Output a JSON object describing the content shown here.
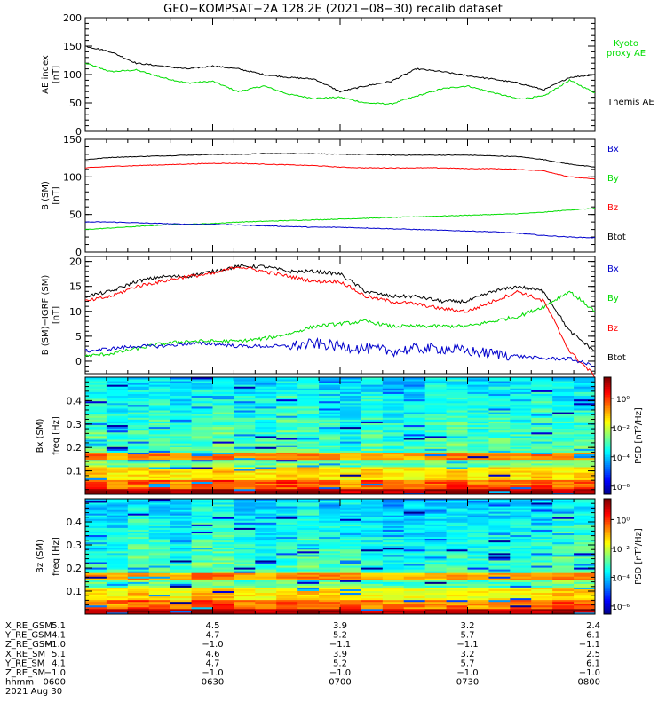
{
  "title": "GEO−KOMPSAT−2A 128.2E (2021−08−30) recalib dataset",
  "colors": {
    "black": "#000000",
    "green": "#00dd00",
    "red": "#ff0000",
    "blue": "#0000cc"
  },
  "chart_data": [
    {
      "type": "line",
      "name": "ae",
      "ylabel": "AE index",
      "yunit": "[nT]",
      "ylim": [
        0,
        200
      ],
      "yticks": [
        0,
        50,
        100,
        150,
        200
      ],
      "x": [
        0,
        3,
        6,
        9,
        12,
        15,
        18,
        21,
        24,
        27,
        30,
        33,
        36,
        39,
        42,
        45,
        48,
        51,
        54,
        57,
        60
      ],
      "xlabel_times": [
        "0600",
        "0630",
        "0700",
        "0730",
        "0800"
      ],
      "series": [
        {
          "name": "Kyoto proxy AE",
          "label_lines": [
            "Kyoto",
            "proxy AE"
          ],
          "color": "#00dd00",
          "values": [
            120,
            105,
            108,
            95,
            85,
            88,
            70,
            80,
            65,
            58,
            60,
            50,
            48,
            62,
            75,
            80,
            68,
            57,
            62,
            90,
            68
          ]
        },
        {
          "name": "Themis AE",
          "label_lines": [
            "Themis AE"
          ],
          "color": "#000000",
          "values": [
            150,
            140,
            120,
            115,
            110,
            115,
            110,
            100,
            95,
            92,
            70,
            80,
            88,
            110,
            105,
            98,
            92,
            85,
            73,
            95,
            100
          ]
        }
      ]
    },
    {
      "type": "line",
      "name": "bsm",
      "ylabel": "B (SM)",
      "yunit": "[nT]",
      "ylim": [
        0,
        150
      ],
      "yticks": [
        0,
        50,
        100,
        150
      ],
      "x": [
        0,
        3,
        6,
        9,
        12,
        15,
        18,
        21,
        24,
        27,
        30,
        33,
        36,
        39,
        42,
        45,
        48,
        51,
        54,
        57,
        60
      ],
      "series": [
        {
          "name": "Btot",
          "color": "#000000",
          "values": [
            123,
            126,
            127,
            128,
            129,
            130,
            130,
            131,
            131,
            131,
            130,
            130,
            129,
            129,
            129,
            129,
            128,
            127,
            123,
            117,
            113
          ]
        },
        {
          "name": "By",
          "color": "#00dd00",
          "values": [
            30,
            32,
            34,
            36,
            37,
            38,
            40,
            41,
            42,
            43,
            44,
            45,
            46,
            47,
            48,
            49,
            50,
            51,
            53,
            56,
            58
          ]
        },
        {
          "name": "Bz",
          "color": "#ff0000",
          "values": [
            112,
            114,
            115,
            116,
            117,
            118,
            118,
            117,
            116,
            115,
            113,
            112,
            112,
            112,
            112,
            111,
            111,
            110,
            108,
            100,
            97
          ]
        },
        {
          "name": "Bx",
          "color": "#0000cc",
          "values": [
            40,
            40,
            39,
            38,
            37,
            37,
            36,
            35,
            34,
            33,
            33,
            32,
            31,
            30,
            29,
            28,
            27,
            25,
            22,
            20,
            19
          ]
        }
      ],
      "legend": [
        "Bx",
        "By",
        "Bz",
        "Btot"
      ]
    },
    {
      "type": "line",
      "name": "dbsm",
      "ylabel": "B (SM)−IGRF (SM)",
      "yunit": "[nT]",
      "ylim": [
        -2.5,
        21
      ],
      "yticks": [
        0,
        5,
        10,
        15,
        20
      ],
      "x": [
        0,
        3,
        6,
        9,
        12,
        15,
        18,
        21,
        24,
        27,
        30,
        33,
        36,
        39,
        42,
        45,
        48,
        51,
        54,
        57,
        60
      ],
      "series": [
        {
          "name": "Btot",
          "color": "#000000",
          "values": [
            13,
            14,
            16,
            17,
            17,
            18,
            19,
            19,
            18,
            18,
            17.5,
            14,
            13,
            13,
            12,
            12,
            14,
            15,
            14,
            6,
            2
          ]
        },
        {
          "name": "By",
          "color": "#00dd00",
          "values": [
            1,
            1.5,
            2.5,
            3.5,
            4,
            4,
            4,
            4.5,
            5.5,
            7,
            7.5,
            8,
            7,
            7,
            7,
            7,
            8,
            9,
            11,
            14,
            10
          ]
        },
        {
          "name": "Bz",
          "color": "#ff0000",
          "values": [
            12,
            13,
            15,
            16,
            17,
            17.5,
            19,
            18,
            17,
            16,
            16,
            13,
            12,
            11.5,
            10.5,
            10,
            12,
            14,
            12,
            2,
            -3
          ]
        },
        {
          "name": "Bx",
          "color": "#0000cc",
          "values": [
            2,
            2.5,
            3,
            3,
            3.5,
            3.5,
            3,
            3,
            3,
            3.5,
            3,
            2.5,
            2,
            2.5,
            2.5,
            2,
            1.5,
            1,
            0.5,
            0.5,
            -1
          ]
        }
      ],
      "legend": [
        "Bx",
        "By",
        "Bz",
        "Btot"
      ]
    },
    {
      "type": "heatmap",
      "name": "spec_bx",
      "ylabel": "Bx (SM)",
      "ysub": "freq [Hz]",
      "ylim": [
        0,
        0.5
      ],
      "yticks": [
        0.1,
        0.2,
        0.3,
        0.4
      ],
      "colorbar": {
        "label": "PSD [nT²/Hz]",
        "ticks": [
          "10⁰",
          "10⁻²",
          "10⁻⁴",
          "10⁻⁶"
        ]
      }
    },
    {
      "type": "heatmap",
      "name": "spec_bz",
      "ylabel": "Bz (SM)",
      "ysub": "freq [Hz]",
      "ylim": [
        0,
        0.5
      ],
      "yticks": [
        0.1,
        0.2,
        0.3,
        0.4
      ],
      "colorbar": {
        "label": "PSD [nT²/Hz]",
        "ticks": [
          "10⁰",
          "10⁻²",
          "10⁻⁴",
          "10⁻⁶"
        ]
      }
    }
  ],
  "orbit_table": {
    "rows": [
      {
        "label": "X_RE_GSM",
        "values": [
          "5.1",
          "4.5",
          "3.9",
          "3.2",
          "2.4"
        ]
      },
      {
        "label": "Y_RE_GSM",
        "values": [
          "4.1",
          "4.7",
          "5.2",
          "5.7",
          "6.1"
        ]
      },
      {
        "label": "Z_RE_GSM",
        "values": [
          "−1.0",
          "−1.0",
          "−1.1",
          "−1.1",
          "−1.1"
        ]
      },
      {
        "label": "X_RE_SM",
        "values": [
          "5.1",
          "4.6",
          "3.9",
          "3.2",
          "2.5"
        ]
      },
      {
        "label": "Y_RE_SM",
        "values": [
          "4.1",
          "4.7",
          "5.2",
          "5.7",
          "6.1"
        ]
      },
      {
        "label": "Z_RE_SM",
        "values": [
          "−1.0",
          "−1.0",
          "−1.0",
          "−1.0",
          "−1.0"
        ]
      },
      {
        "label": "hhmm",
        "values": [
          "0600",
          "0630",
          "0700",
          "0730",
          "0800"
        ]
      }
    ],
    "date": "2021 Aug 30"
  }
}
